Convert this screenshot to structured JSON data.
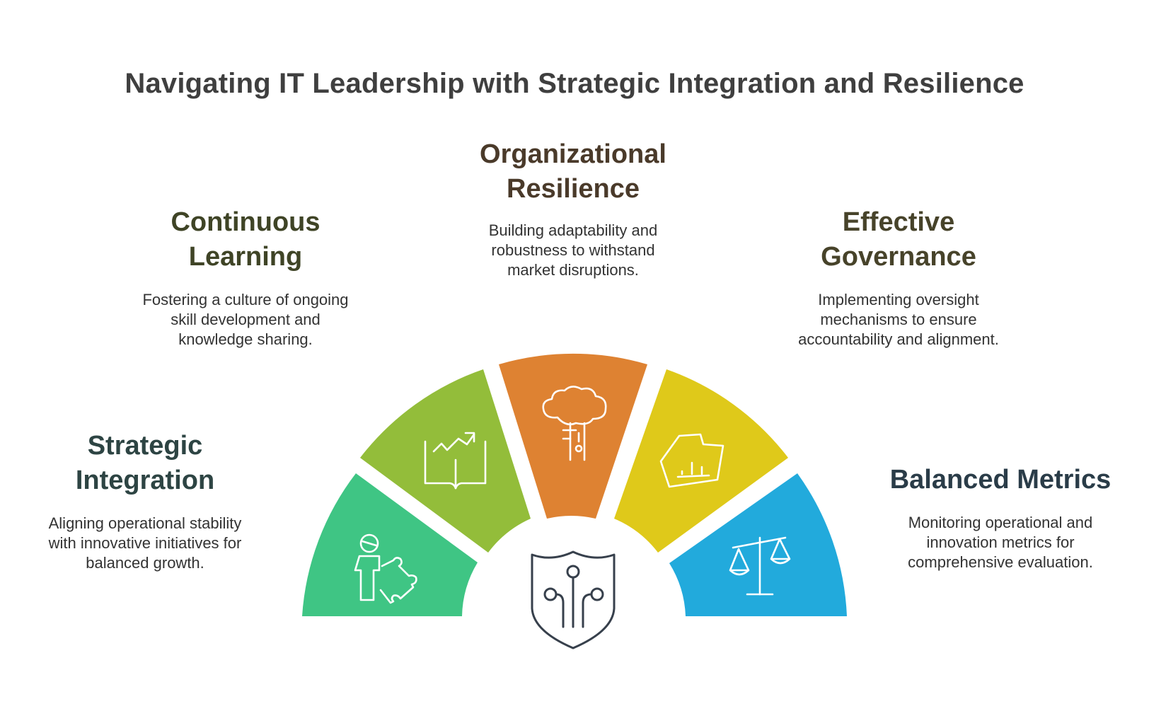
{
  "title": "Navigating IT Leadership with Strategic Integration and Resilience",
  "segments": [
    {
      "id": "strategic-integration",
      "heading_lines": [
        "Strategic",
        "Integration"
      ],
      "description_lines": [
        "Aligning operational stability",
        "with innovative initiatives for",
        "balanced growth."
      ],
      "color": "#3fc584",
      "heading_color": "#2d4443",
      "icon": "person-puzzle-icon"
    },
    {
      "id": "continuous-learning",
      "heading_lines": [
        "Continuous",
        "Learning"
      ],
      "description_lines": [
        "Fostering a culture of ongoing",
        "skill development and",
        "knowledge sharing."
      ],
      "color": "#93bd3a",
      "heading_color": "#3f4426",
      "icon": "book-growth-icon"
    },
    {
      "id": "organizational-resilience",
      "heading_lines": [
        "Organizational",
        "Resilience"
      ],
      "description_lines": [
        "Building adaptability and",
        "robustness to withstand",
        "market disruptions."
      ],
      "color": "#de8232",
      "heading_color": "#4a3a2a",
      "icon": "tree-icon"
    },
    {
      "id": "effective-governance",
      "heading_lines": [
        "Effective",
        "Governance"
      ],
      "description_lines": [
        "Implementing oversight",
        "mechanisms to ensure",
        "accountability and alignment."
      ],
      "color": "#dfc91a",
      "heading_color": "#47432a",
      "icon": "chart-shape-icon"
    },
    {
      "id": "balanced-metrics",
      "heading_lines": [
        "Balanced Metrics"
      ],
      "description_lines": [
        "Monitoring operational and",
        "innovation metrics for",
        "comprehensive evaluation."
      ],
      "color": "#22aadc",
      "heading_color": "#2a3c48",
      "icon": "scale-icon"
    }
  ],
  "center_icon": "circuit-shield-icon",
  "center_icon_color": "#37404c"
}
